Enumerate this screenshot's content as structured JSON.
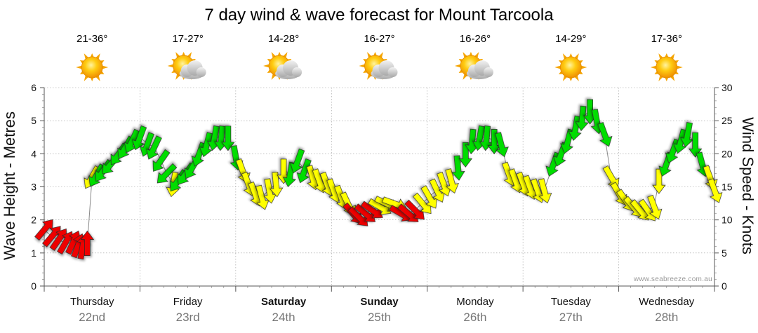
{
  "page": {
    "title": "7 day wind & wave forecast for Mount Tarcoola"
  },
  "credit": "www.seabreeze.com.au",
  "days": [
    {
      "name": "Thursday",
      "date": "22nd",
      "temp": "21-36°",
      "icon": "sun-icon",
      "bold": false
    },
    {
      "name": "Friday",
      "date": "23rd",
      "temp": "17-27°",
      "icon": "sun-cloud-icon",
      "bold": false
    },
    {
      "name": "Saturday",
      "date": "24th",
      "temp": "14-28°",
      "icon": "sun-cloud-icon",
      "bold": true
    },
    {
      "name": "Sunday",
      "date": "25th",
      "temp": "16-27°",
      "icon": "sun-cloud-icon",
      "bold": true
    },
    {
      "name": "Monday",
      "date": "26th",
      "temp": "16-26°",
      "icon": "sun-cloud-icon",
      "bold": false
    },
    {
      "name": "Tuesday",
      "date": "27th",
      "temp": "14-29°",
      "icon": "sun-icon",
      "bold": false
    },
    {
      "name": "Wednesday",
      "date": "28th",
      "temp": "17-36°",
      "icon": "sun-icon",
      "bold": false
    }
  ],
  "colors": {
    "strong": "#00dd00",
    "moderate": "#ffff00",
    "light": "#ee0000",
    "line": "#888888",
    "grid": "#999999"
  },
  "chart_data": {
    "type": "line",
    "title": "7 day wind & wave forecast for Mount Tarcoola",
    "ylabel": "Wave Height - Metres",
    "y2label": "Wind Speed - Knots",
    "ylim": [
      0,
      6
    ],
    "y2lim": [
      0,
      30
    ],
    "yticks": [
      "0",
      "1",
      "2",
      "3",
      "4",
      "5",
      "6"
    ],
    "y2ticks": [
      "0",
      "5",
      "10",
      "15",
      "20",
      "25",
      "30"
    ],
    "x_unit": "days from Thursday 00:00",
    "categories": [
      "Thursday 22nd",
      "Friday 23rd",
      "Saturday 24th",
      "Sunday 25th",
      "Monday 26th",
      "Tuesday 27th",
      "Wednesday 28th"
    ],
    "series": [
      {
        "name": "Wind speed (knots)",
        "points": [
          {
            "t": 0.0,
            "v": 8.5,
            "dir": 40,
            "cat": "light"
          },
          {
            "t": 0.08,
            "v": 7.5,
            "dir": 40,
            "cat": "light"
          },
          {
            "t": 0.15,
            "v": 7.0,
            "dir": 35,
            "cat": "light"
          },
          {
            "t": 0.22,
            "v": 6.5,
            "dir": 30,
            "cat": "light"
          },
          {
            "t": 0.3,
            "v": 6.5,
            "dir": 25,
            "cat": "light"
          },
          {
            "t": 0.35,
            "v": 6.0,
            "dir": 20,
            "cat": "light"
          },
          {
            "t": 0.4,
            "v": 5.8,
            "dir": 10,
            "cat": "light"
          },
          {
            "t": 0.45,
            "v": 6.3,
            "dir": 0,
            "cat": "light"
          },
          {
            "t": 0.5,
            "v": 16.5,
            "dir": 210,
            "cat": "moderate"
          },
          {
            "t": 0.55,
            "v": 16.8,
            "dir": 210,
            "cat": "strong"
          },
          {
            "t": 0.62,
            "v": 17.5,
            "dir": 215,
            "cat": "strong"
          },
          {
            "t": 0.7,
            "v": 18.5,
            "dir": 220,
            "cat": "strong"
          },
          {
            "t": 0.78,
            "v": 20.0,
            "dir": 215,
            "cat": "strong"
          },
          {
            "t": 0.85,
            "v": 21.0,
            "dir": 210,
            "cat": "strong"
          },
          {
            "t": 0.92,
            "v": 22.0,
            "dir": 205,
            "cat": "strong"
          },
          {
            "t": 1.0,
            "v": 22.5,
            "dir": 200,
            "cat": "strong"
          },
          {
            "t": 1.08,
            "v": 21.5,
            "dir": 200,
            "cat": "strong"
          },
          {
            "t": 1.15,
            "v": 21.0,
            "dir": 205,
            "cat": "strong"
          },
          {
            "t": 1.22,
            "v": 19.0,
            "dir": 215,
            "cat": "strong"
          },
          {
            "t": 1.28,
            "v": 17.0,
            "dir": 225,
            "cat": "strong"
          },
          {
            "t": 1.35,
            "v": 15.5,
            "dir": 190,
            "cat": "moderate"
          },
          {
            "t": 1.4,
            "v": 16.0,
            "dir": 215,
            "cat": "strong"
          },
          {
            "t": 1.48,
            "v": 17.0,
            "dir": 215,
            "cat": "strong"
          },
          {
            "t": 1.55,
            "v": 18.0,
            "dir": 210,
            "cat": "strong"
          },
          {
            "t": 1.62,
            "v": 20.0,
            "dir": 200,
            "cat": "strong"
          },
          {
            "t": 1.7,
            "v": 21.5,
            "dir": 195,
            "cat": "strong"
          },
          {
            "t": 1.78,
            "v": 22.5,
            "dir": 190,
            "cat": "strong"
          },
          {
            "t": 1.85,
            "v": 22.5,
            "dir": 185,
            "cat": "strong"
          },
          {
            "t": 1.92,
            "v": 22.5,
            "dir": 180,
            "cat": "strong"
          },
          {
            "t": 2.0,
            "v": 19.5,
            "dir": 170,
            "cat": "strong"
          },
          {
            "t": 2.07,
            "v": 17.5,
            "dir": 160,
            "cat": "moderate"
          },
          {
            "t": 2.13,
            "v": 15.5,
            "dir": 160,
            "cat": "moderate"
          },
          {
            "t": 2.2,
            "v": 14.0,
            "dir": 160,
            "cat": "moderate"
          },
          {
            "t": 2.27,
            "v": 13.5,
            "dir": 165,
            "cat": "moderate"
          },
          {
            "t": 2.35,
            "v": 14.5,
            "dir": 170,
            "cat": "moderate"
          },
          {
            "t": 2.42,
            "v": 15.5,
            "dir": 175,
            "cat": "moderate"
          },
          {
            "t": 2.5,
            "v": 17.5,
            "dir": 180,
            "cat": "moderate"
          },
          {
            "t": 2.57,
            "v": 17.0,
            "dir": 190,
            "cat": "strong"
          },
          {
            "t": 2.65,
            "v": 19.0,
            "dir": 200,
            "cat": "strong"
          },
          {
            "t": 2.72,
            "v": 17.5,
            "dir": 200,
            "cat": "strong"
          },
          {
            "t": 2.8,
            "v": 16.5,
            "dir": 165,
            "cat": "moderate"
          },
          {
            "t": 2.87,
            "v": 16.0,
            "dir": 160,
            "cat": "moderate"
          },
          {
            "t": 2.95,
            "v": 15.5,
            "dir": 160,
            "cat": "moderate"
          },
          {
            "t": 3.02,
            "v": 14.5,
            "dir": 160,
            "cat": "moderate"
          },
          {
            "t": 3.1,
            "v": 13.5,
            "dir": 160,
            "cat": "moderate"
          },
          {
            "t": 3.17,
            "v": 12.5,
            "dir": 155,
            "cat": "moderate"
          },
          {
            "t": 3.22,
            "v": 11.0,
            "dir": 140,
            "cat": "light"
          },
          {
            "t": 3.28,
            "v": 10.5,
            "dir": 135,
            "cat": "light"
          },
          {
            "t": 3.35,
            "v": 11.0,
            "dir": 130,
            "cat": "light"
          },
          {
            "t": 3.42,
            "v": 11.5,
            "dir": 125,
            "cat": "light"
          },
          {
            "t": 3.5,
            "v": 12.0,
            "dir": 120,
            "cat": "moderate"
          },
          {
            "t": 3.57,
            "v": 12.5,
            "dir": 115,
            "cat": "moderate"
          },
          {
            "t": 3.65,
            "v": 12.5,
            "dir": 110,
            "cat": "moderate"
          },
          {
            "t": 3.72,
            "v": 11.0,
            "dir": 120,
            "cat": "light"
          },
          {
            "t": 3.8,
            "v": 11.0,
            "dir": 130,
            "cat": "light"
          },
          {
            "t": 3.87,
            "v": 11.5,
            "dir": 135,
            "cat": "light"
          },
          {
            "t": 3.95,
            "v": 12.5,
            "dir": 140,
            "cat": "moderate"
          },
          {
            "t": 4.02,
            "v": 13.5,
            "dir": 150,
            "cat": "moderate"
          },
          {
            "t": 4.1,
            "v": 14.5,
            "dir": 155,
            "cat": "moderate"
          },
          {
            "t": 4.17,
            "v": 15.5,
            "dir": 160,
            "cat": "moderate"
          },
          {
            "t": 4.25,
            "v": 16.0,
            "dir": 165,
            "cat": "moderate"
          },
          {
            "t": 4.32,
            "v": 18.0,
            "dir": 175,
            "cat": "strong"
          },
          {
            "t": 4.4,
            "v": 20.0,
            "dir": 180,
            "cat": "strong"
          },
          {
            "t": 4.47,
            "v": 22.0,
            "dir": 185,
            "cat": "strong"
          },
          {
            "t": 4.55,
            "v": 22.5,
            "dir": 190,
            "cat": "strong"
          },
          {
            "t": 4.62,
            "v": 22.5,
            "dir": 185,
            "cat": "strong"
          },
          {
            "t": 4.7,
            "v": 22.0,
            "dir": 180,
            "cat": "strong"
          },
          {
            "t": 4.77,
            "v": 21.5,
            "dir": 165,
            "cat": "strong"
          },
          {
            "t": 4.85,
            "v": 17.0,
            "dir": 160,
            "cat": "moderate"
          },
          {
            "t": 4.92,
            "v": 16.0,
            "dir": 160,
            "cat": "moderate"
          },
          {
            "t": 5.0,
            "v": 15.5,
            "dir": 160,
            "cat": "moderate"
          },
          {
            "t": 5.07,
            "v": 15.0,
            "dir": 160,
            "cat": "moderate"
          },
          {
            "t": 5.15,
            "v": 14.5,
            "dir": 160,
            "cat": "moderate"
          },
          {
            "t": 5.22,
            "v": 14.5,
            "dir": 165,
            "cat": "moderate"
          },
          {
            "t": 5.32,
            "v": 18.5,
            "dir": 200,
            "cat": "strong"
          },
          {
            "t": 5.4,
            "v": 20.0,
            "dir": 200,
            "cat": "strong"
          },
          {
            "t": 5.47,
            "v": 22.0,
            "dir": 195,
            "cat": "strong"
          },
          {
            "t": 5.55,
            "v": 24.0,
            "dir": 190,
            "cat": "strong"
          },
          {
            "t": 5.62,
            "v": 25.5,
            "dir": 185,
            "cat": "strong"
          },
          {
            "t": 5.7,
            "v": 26.5,
            "dir": 180,
            "cat": "strong"
          },
          {
            "t": 5.77,
            "v": 25.0,
            "dir": 170,
            "cat": "strong"
          },
          {
            "t": 5.85,
            "v": 23.0,
            "dir": 160,
            "cat": "strong"
          },
          {
            "t": 5.92,
            "v": 16.5,
            "dir": 150,
            "cat": "moderate"
          },
          {
            "t": 6.0,
            "v": 14.0,
            "dir": 150,
            "cat": "moderate"
          },
          {
            "t": 6.07,
            "v": 13.0,
            "dir": 145,
            "cat": "moderate"
          },
          {
            "t": 6.15,
            "v": 12.0,
            "dir": 140,
            "cat": "moderate"
          },
          {
            "t": 6.22,
            "v": 11.5,
            "dir": 140,
            "cat": "moderate"
          },
          {
            "t": 6.3,
            "v": 11.5,
            "dir": 145,
            "cat": "moderate"
          },
          {
            "t": 6.37,
            "v": 12.0,
            "dir": 160,
            "cat": "moderate"
          },
          {
            "t": 6.42,
            "v": 16.0,
            "dir": 180,
            "cat": "moderate"
          },
          {
            "t": 6.5,
            "v": 18.5,
            "dir": 200,
            "cat": "strong"
          },
          {
            "t": 6.57,
            "v": 20.5,
            "dir": 200,
            "cat": "strong"
          },
          {
            "t": 6.65,
            "v": 22.0,
            "dir": 195,
            "cat": "strong"
          },
          {
            "t": 6.72,
            "v": 23.0,
            "dir": 190,
            "cat": "strong"
          },
          {
            "t": 6.8,
            "v": 21.5,
            "dir": 180,
            "cat": "strong"
          },
          {
            "t": 6.87,
            "v": 18.5,
            "dir": 165,
            "cat": "strong"
          },
          {
            "t": 6.95,
            "v": 16.5,
            "dir": 160,
            "cat": "moderate"
          },
          {
            "t": 7.0,
            "v": 14.5,
            "dir": 160,
            "cat": "moderate"
          }
        ]
      }
    ]
  }
}
